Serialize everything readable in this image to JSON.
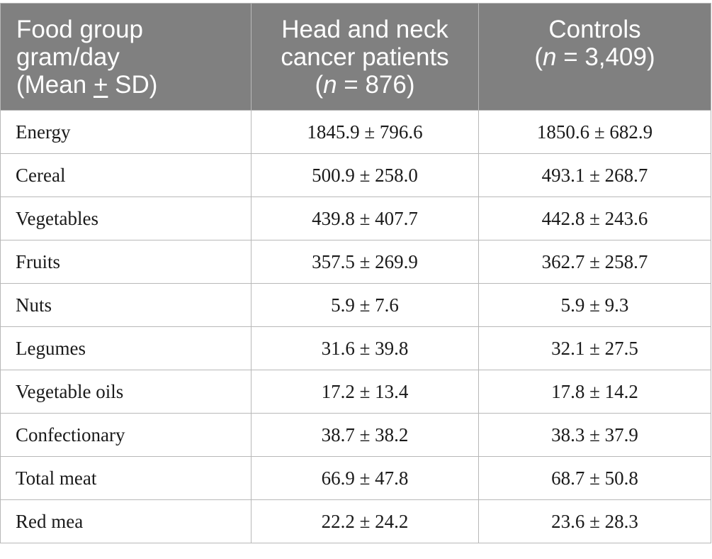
{
  "table": {
    "header": {
      "col1": [
        "Food group",
        "gram/day"
      ],
      "col1_mean": "(Mean ",
      "col1_pm": "+",
      "col1_sd": " SD)",
      "col2_line1": "Head and neck",
      "col2_line2": "cancer patients",
      "col2_open": "(",
      "col2_n": "n",
      "col2_rest": " = 876)",
      "col3_line1": "Controls",
      "col3_open": "(",
      "col3_n": "n",
      "col3_rest": " = 3,409)"
    },
    "rows": [
      {
        "group": "Energy",
        "patients": "1845.9 ± 796.6",
        "controls": "1850.6 ± 682.9"
      },
      {
        "group": "Cereal",
        "patients": "500.9 ± 258.0",
        "controls": "493.1 ± 268.7"
      },
      {
        "group": "Vegetables",
        "patients": "439.8 ± 407.7",
        "controls": "442.8 ± 243.6"
      },
      {
        "group": "Fruits",
        "patients": "357.5 ± 269.9",
        "controls": "362.7 ± 258.7"
      },
      {
        "group": "Nuts",
        "patients": "5.9 ± 7.6",
        "controls": "5.9 ± 9.3"
      },
      {
        "group": "Legumes",
        "patients": "31.6 ± 39.8",
        "controls": "32.1 ± 27.5"
      },
      {
        "group": "Vegetable oils",
        "patients": "17.2 ± 13.4",
        "controls": "17.8 ± 14.2"
      },
      {
        "group": "Confectionary",
        "patients": "38.7 ± 38.2",
        "controls": "38.3 ± 37.9"
      },
      {
        "group": "Total meat",
        "patients": "66.9 ± 47.8",
        "controls": "68.7 ± 50.8"
      },
      {
        "group": "Red mea",
        "patients": "22.2 ± 24.2",
        "controls": "23.6 ± 28.3"
      }
    ]
  },
  "colors": {
    "header_bg": "#808080",
    "header_text": "#ffffff",
    "border": "#b8b8b8"
  }
}
